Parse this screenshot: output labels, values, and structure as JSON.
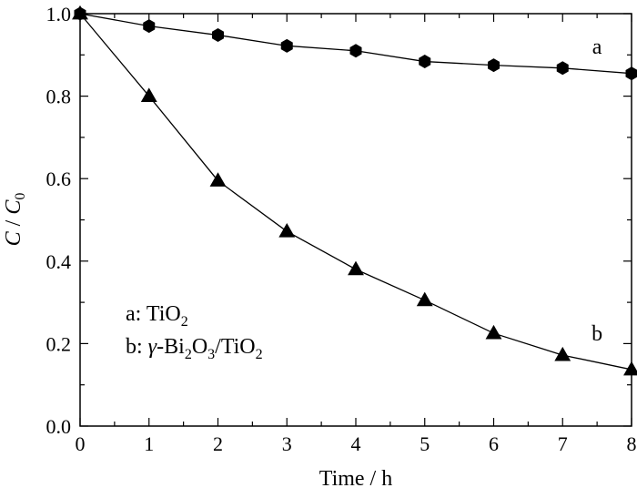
{
  "chart_data": {
    "type": "line",
    "xlabel": "Time / h",
    "ylabel_parts": {
      "c": "C",
      "slash": " / ",
      "c0": "C",
      "c0_sub": "0"
    },
    "xlim": [
      0,
      8
    ],
    "ylim": [
      0,
      1.0
    ],
    "x_ticks": [
      0,
      1,
      2,
      3,
      4,
      5,
      6,
      7,
      8
    ],
    "x_tick_labels": [
      "0",
      "1",
      "2",
      "3",
      "4",
      "5",
      "6",
      "7",
      "8"
    ],
    "y_ticks": [
      0,
      0.2,
      0.4,
      0.6,
      0.8,
      1.0
    ],
    "y_tick_labels": [
      "0.0",
      "0.2",
      "0.4",
      "0.6",
      "0.8",
      "1.0"
    ],
    "grid": false,
    "legend_position": "bottom-left",
    "x": [
      0,
      1,
      2,
      3,
      4,
      5,
      6,
      7,
      8
    ],
    "series": [
      {
        "name": "a",
        "marker": "hexagon",
        "color": "#000000",
        "values": [
          1.0,
          0.97,
          0.948,
          0.922,
          0.91,
          0.884,
          0.875,
          0.868,
          0.855
        ]
      },
      {
        "name": "b",
        "marker": "triangle",
        "color": "#000000",
        "values": [
          1.0,
          0.8,
          0.595,
          0.472,
          0.38,
          0.305,
          0.225,
          0.172,
          0.137
        ]
      }
    ],
    "legend": [
      {
        "prefix": "a: ",
        "parts": [
          {
            "t": "TiO"
          },
          {
            "t": "2",
            "sub": true
          }
        ]
      },
      {
        "prefix": "b: ",
        "parts": [
          {
            "t": "γ",
            "italic": true
          },
          {
            "t": "-Bi"
          },
          {
            "t": "2",
            "sub": true
          },
          {
            "t": "O"
          },
          {
            "t": "3",
            "sub": true
          },
          {
            "t": "/TiO"
          },
          {
            "t": "2",
            "sub": true
          }
        ]
      }
    ]
  }
}
